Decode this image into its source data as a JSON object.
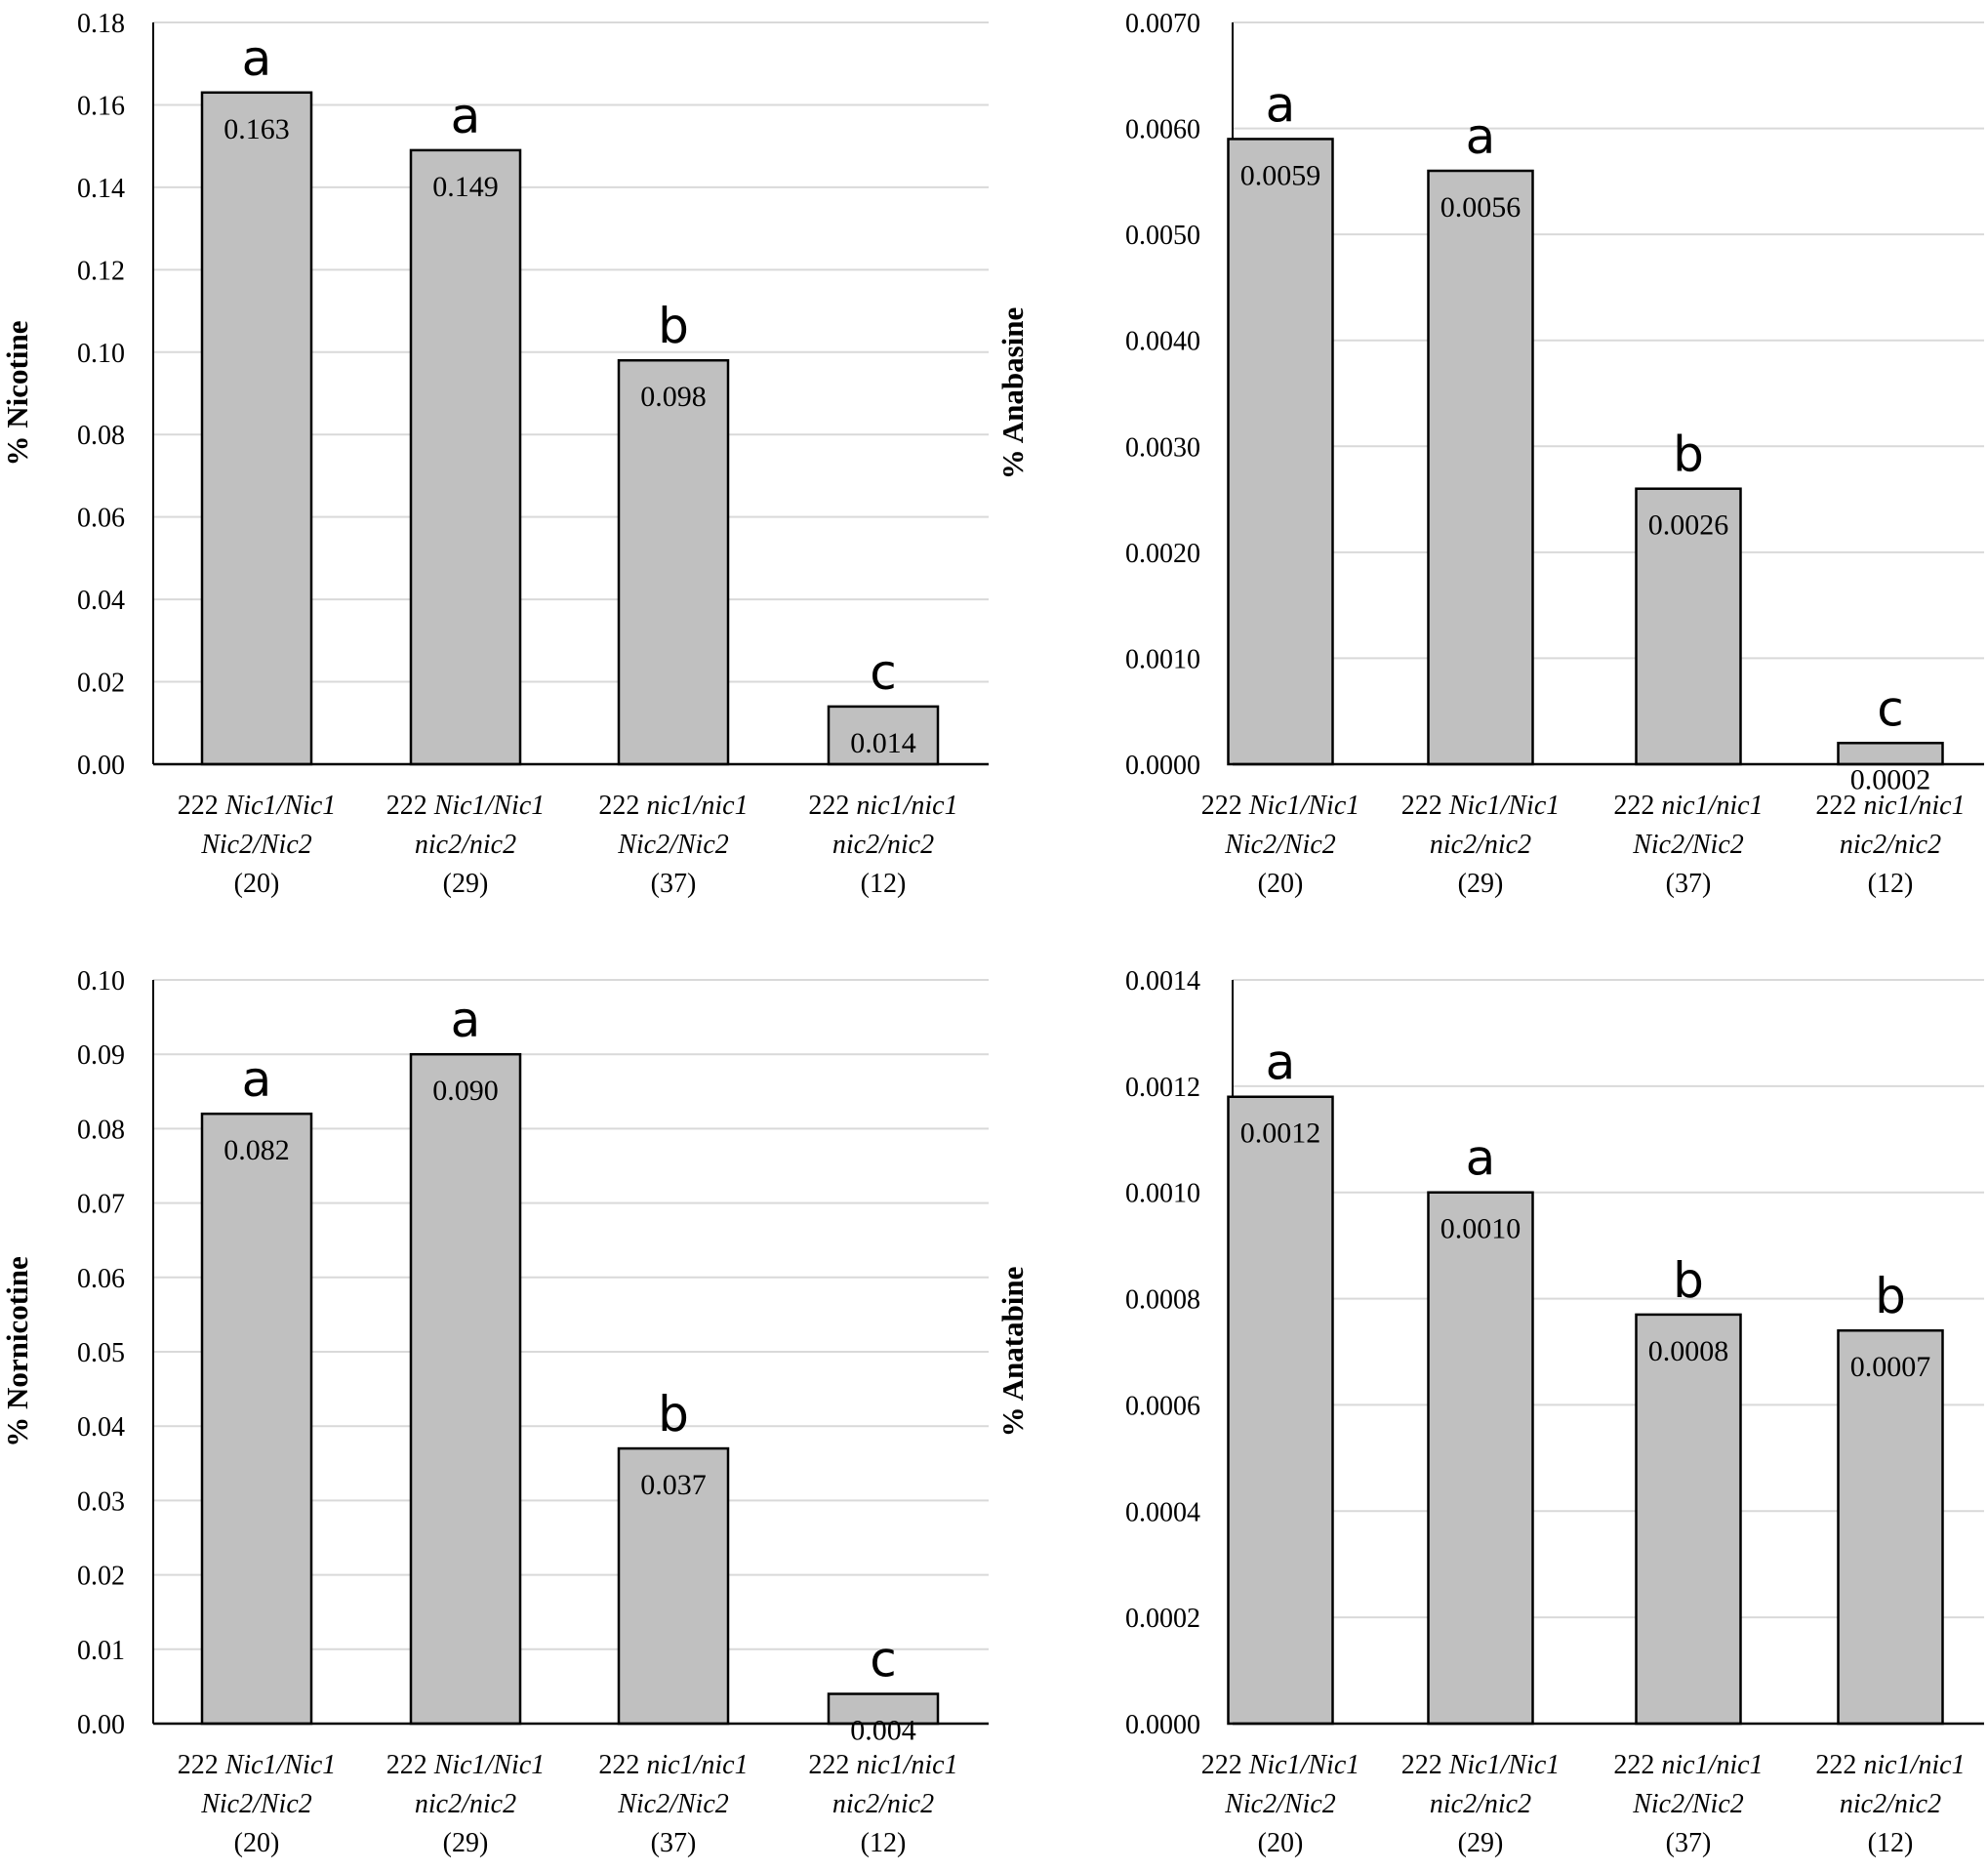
{
  "colors": {
    "bar": "#c0c0c0",
    "bar_edge": "#000000",
    "grid": "#d9d9d9",
    "axis": "#000000"
  },
  "chart_data": [
    {
      "type": "bar",
      "ylabel": "% Nicotine",
      "ylim": [
        0,
        0.18
      ],
      "yticks": [
        "0.00",
        "0.02",
        "0.04",
        "0.06",
        "0.08",
        "0.10",
        "0.12",
        "0.14",
        "0.16",
        "0.18"
      ],
      "categories": [
        {
          "prefix": "222 ",
          "line1": "Nic1/Nic1",
          "line2": "Nic2/Nic2",
          "n": "(20)"
        },
        {
          "prefix": "222 ",
          "line1": "Nic1/Nic1",
          "line2": "nic2/nic2",
          "n": "(29)"
        },
        {
          "prefix": "222 ",
          "line1": "nic1/nic1",
          "line2": "Nic2/Nic2",
          "n": "(37)"
        },
        {
          "prefix": "222 ",
          "line1": "nic1/nic1",
          "line2": "nic2/nic2",
          "n": "(12)"
        }
      ],
      "values": [
        0.163,
        0.149,
        0.098,
        0.014
      ],
      "value_labels": [
        "0.163",
        "0.149",
        "0.098",
        "0.014"
      ],
      "significance": [
        "a",
        "a",
        "b",
        "c"
      ]
    },
    {
      "type": "bar",
      "ylabel": "% Anabasine",
      "ylim": [
        0,
        0.007
      ],
      "yticks": [
        "0.0000",
        "0.0010",
        "0.0020",
        "0.0030",
        "0.0040",
        "0.0050",
        "0.0060",
        "0.0070"
      ],
      "categories": [
        {
          "prefix": "222 ",
          "line1": "Nic1/Nic1",
          "line2": "Nic2/Nic2",
          "n": "(20)"
        },
        {
          "prefix": "222 ",
          "line1": "Nic1/Nic1",
          "line2": "nic2/nic2",
          "n": "(29)"
        },
        {
          "prefix": "222 ",
          "line1": "nic1/nic1",
          "line2": "Nic2/Nic2",
          "n": "(37)"
        },
        {
          "prefix": "222 ",
          "line1": "nic1/nic1",
          "line2": "nic2/nic2",
          "n": "(12)"
        }
      ],
      "values": [
        0.0059,
        0.0056,
        0.0026,
        0.0002
      ],
      "value_labels": [
        "0.0059",
        "0.0056",
        "0.0026",
        "0.0002"
      ],
      "significance": [
        "a",
        "a",
        "b",
        "c"
      ]
    },
    {
      "type": "bar",
      "ylabel": "% Nornicotine",
      "ylim": [
        0,
        0.1
      ],
      "yticks": [
        "0.00",
        "0.01",
        "0.02",
        "0.03",
        "0.04",
        "0.05",
        "0.06",
        "0.07",
        "0.08",
        "0.09",
        "0.10"
      ],
      "categories": [
        {
          "prefix": "222 ",
          "line1": "Nic1/Nic1",
          "line2": "Nic2/Nic2",
          "n": "(20)"
        },
        {
          "prefix": "222 ",
          "line1": "Nic1/Nic1",
          "line2": "nic2/nic2",
          "n": "(29)"
        },
        {
          "prefix": "222 ",
          "line1": "nic1/nic1",
          "line2": "Nic2/Nic2",
          "n": "(37)"
        },
        {
          "prefix": "222 ",
          "line1": "nic1/nic1",
          "line2": "nic2/nic2",
          "n": "(12)"
        }
      ],
      "values": [
        0.082,
        0.09,
        0.037,
        0.004
      ],
      "value_labels": [
        "0.082",
        "0.090",
        "0.037",
        "0.004"
      ],
      "significance": [
        "a",
        "a",
        "b",
        "c"
      ]
    },
    {
      "type": "bar",
      "ylabel": "% Anatabine",
      "ylim": [
        0,
        0.0014
      ],
      "yticks": [
        "0.0000",
        "0.0002",
        "0.0004",
        "0.0006",
        "0.0008",
        "0.0010",
        "0.0012",
        "0.0014"
      ],
      "categories": [
        {
          "prefix": "222 ",
          "line1": "Nic1/Nic1",
          "line2": "Nic2/Nic2",
          "n": "(20)"
        },
        {
          "prefix": "222 ",
          "line1": "Nic1/Nic1",
          "line2": "nic2/nic2",
          "n": "(29)"
        },
        {
          "prefix": "222 ",
          "line1": "nic1/nic1",
          "line2": "Nic2/Nic2",
          "n": "(37)"
        },
        {
          "prefix": "222 ",
          "line1": "nic1/nic1",
          "line2": "nic2/nic2",
          "n": "(12)"
        }
      ],
      "values": [
        0.00118,
        0.001,
        0.00077,
        0.00074
      ],
      "value_labels": [
        "0.0012",
        "0.0010",
        "0.0008",
        "0.0007"
      ],
      "significance": [
        "a",
        "a",
        "b",
        "b"
      ]
    }
  ]
}
